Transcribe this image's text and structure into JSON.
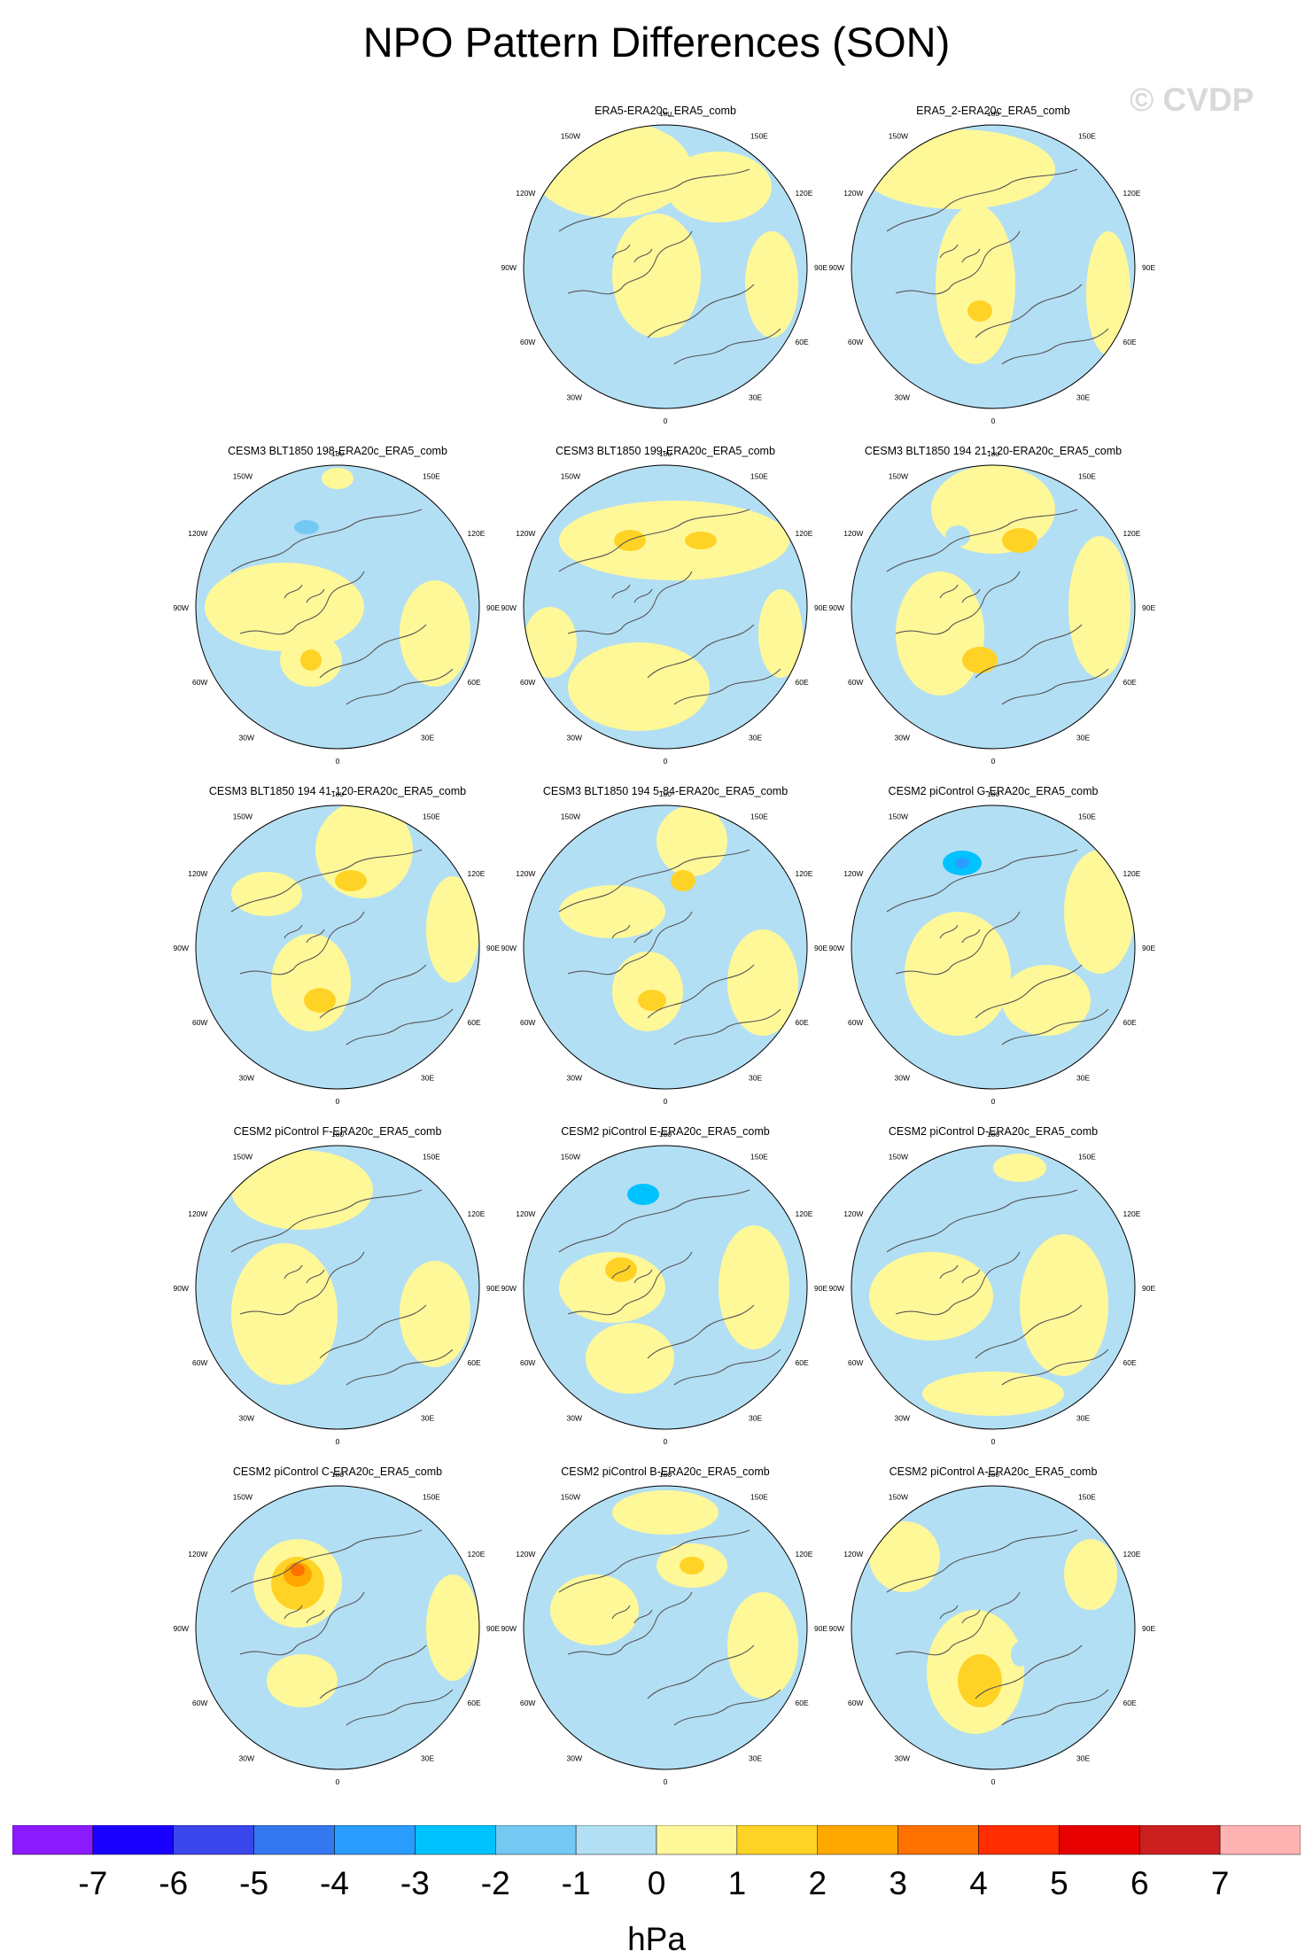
{
  "title": "NPO Pattern Differences (SON)",
  "watermark": "© CVDP",
  "units": "hPa",
  "colors": {
    "levels": [
      "#8c1aff",
      "#1a00ff",
      "#3a46ec",
      "#3478f0",
      "#2a9cff",
      "#00c2ff",
      "#74c9f3",
      "#b3dff4",
      "#fff899",
      "#ffd326",
      "#ffa800",
      "#ff7200",
      "#ff2d00",
      "#e60000",
      "#cc1f1f",
      "#ffb3b3"
    ],
    "coast": "#555555",
    "grid": "#888888"
  },
  "colorbar_ticks": [
    "-7",
    "-6",
    "-5",
    "-4",
    "-3",
    "-2",
    "-1",
    "0",
    "1",
    "2",
    "3",
    "4",
    "5",
    "6",
    "7"
  ],
  "map_labels": {
    "top": "180",
    "bottom": "0",
    "upper_left": "150W",
    "upper_right": "150E",
    "mid_upper_left": "120W",
    "mid_upper_right": "120E",
    "left": "90W",
    "right": "90E",
    "mid_lower_left": "60W",
    "mid_lower_right": "60E",
    "lower_left": "30W",
    "lower_right": "30E"
  },
  "chart_data": {
    "type": "polar contour map panels",
    "colorbar": {
      "levels": [
        -7,
        -6,
        -5,
        -4,
        -3,
        -2,
        -1,
        0,
        1,
        2,
        3,
        4,
        5,
        6,
        7
      ],
      "units": "hPa"
    },
    "panels": [
      {
        "title": "ERA5-ERA20c_ERA5_comb",
        "row": 0,
        "col": 1,
        "peak_min": -1,
        "peak_max": 1
      },
      {
        "title": "ERA5_2-ERA20c_ERA5_comb",
        "row": 0,
        "col": 2,
        "peak_min": -1,
        "peak_max": 2
      },
      {
        "title": "CESM3 BLT1850 198-ERA20c_ERA5_comb",
        "row": 1,
        "col": 0,
        "peak_min": -3,
        "peak_max": 2
      },
      {
        "title": "CESM3 BLT1850 199-ERA20c_ERA5_comb",
        "row": 1,
        "col": 1,
        "peak_min": -2,
        "peak_max": 2
      },
      {
        "title": "CESM3 BLT1850 194 21-120-ERA20c_ERA5_comb",
        "row": 1,
        "col": 2,
        "peak_min": -2,
        "peak_max": 2
      },
      {
        "title": "CESM3 BLT1850 194 41-120-ERA20c_ERA5_comb",
        "row": 2,
        "col": 0,
        "peak_min": -2,
        "peak_max": 2
      },
      {
        "title": "CESM3 BLT1850 194 5-84-ERA20c_ERA5_comb",
        "row": 2,
        "col": 1,
        "peak_min": -2,
        "peak_max": 2
      },
      {
        "title": "CESM2 piControl G-ERA20c_ERA5_comb",
        "row": 2,
        "col": 2,
        "peak_min": -4,
        "peak_max": 1
      },
      {
        "title": "CESM2 piControl F-ERA20c_ERA5_comb",
        "row": 3,
        "col": 0,
        "peak_min": -2,
        "peak_max": 1
      },
      {
        "title": "CESM2 piControl E-ERA20c_ERA5_comb",
        "row": 3,
        "col": 1,
        "peak_min": -4,
        "peak_max": 2
      },
      {
        "title": "CESM2 piControl D-ERA20c_ERA5_comb",
        "row": 3,
        "col": 2,
        "peak_min": -2,
        "peak_max": 1
      },
      {
        "title": "CESM2 piControl C-ERA20c_ERA5_comb",
        "row": 4,
        "col": 0,
        "peak_min": -2,
        "peak_max": 4
      },
      {
        "title": "CESM2 piControl B-ERA20c_ERA5_comb",
        "row": 4,
        "col": 1,
        "peak_min": -1,
        "peak_max": 2
      },
      {
        "title": "CESM2 piControl A-ERA20c_ERA5_comb",
        "row": 4,
        "col": 2,
        "peak_min": -2,
        "peak_max": 2
      }
    ]
  }
}
